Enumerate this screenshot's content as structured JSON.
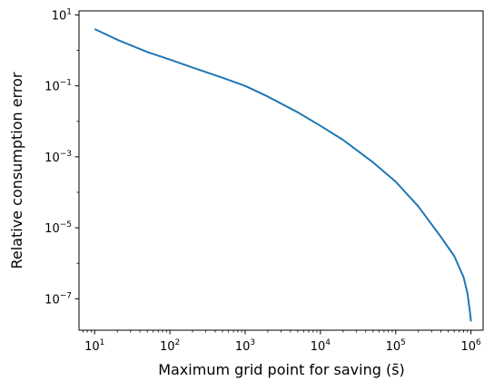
{
  "chart_data": {
    "type": "line",
    "xlabel": "Maximum grid point for saving (s̄)",
    "ylabel": "Relative consumption error",
    "xscale": "log",
    "yscale": "log",
    "xlim": [
      6.2,
      1450000
    ],
    "ylim": [
      1.3e-08,
      13
    ],
    "grid": false,
    "x_ticks": [
      {
        "value": 10,
        "base": "10",
        "exp": "1"
      },
      {
        "value": 100,
        "base": "10",
        "exp": "2"
      },
      {
        "value": 1000,
        "base": "10",
        "exp": "3"
      },
      {
        "value": 10000,
        "base": "10",
        "exp": "4"
      },
      {
        "value": 100000,
        "base": "10",
        "exp": "5"
      },
      {
        "value": 1000000,
        "base": "10",
        "exp": "6"
      }
    ],
    "y_ticks": [
      {
        "value": 10,
        "base": "10",
        "exp": "1"
      },
      {
        "value": 0.1,
        "base": "10",
        "exp": "−1"
      },
      {
        "value": 0.001,
        "base": "10",
        "exp": "−3"
      },
      {
        "value": 1e-05,
        "base": "10",
        "exp": "−5"
      },
      {
        "value": 1e-07,
        "base": "10",
        "exp": "−7"
      }
    ],
    "series": [
      {
        "color": "#1f77b4",
        "x": [
          10,
          20,
          50,
          100,
          200,
          500,
          1000,
          2000,
          5000,
          10000,
          20000,
          50000,
          100000,
          200000,
          400000,
          600000,
          800000,
          900000,
          950000,
          980000,
          1000000
        ],
        "y": [
          4.0,
          2.0,
          0.9,
          0.55,
          0.33,
          0.17,
          0.1,
          0.05,
          0.018,
          0.0075,
          0.003,
          0.0007,
          0.0002,
          4e-05,
          5.5e-06,
          1.6e-06,
          4e-07,
          1.4e-07,
          6e-08,
          3.5e-08,
          2.3e-08
        ]
      }
    ]
  }
}
